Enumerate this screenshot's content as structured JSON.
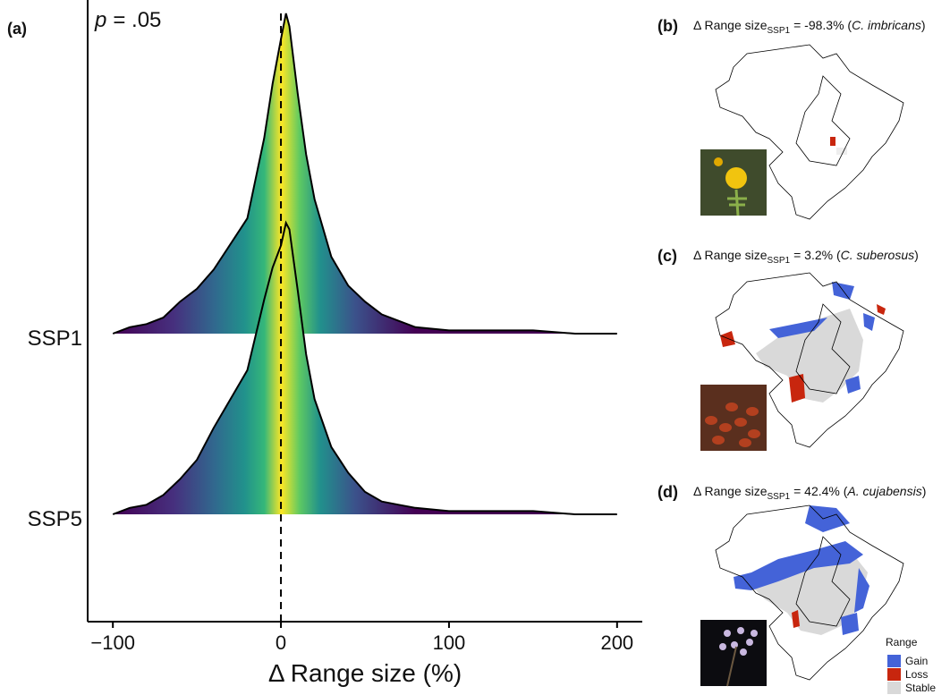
{
  "chart_data": {
    "type": "ridgeline",
    "panel_label": "(a)",
    "annotation": {
      "symbol": "p",
      "text": "= .05"
    },
    "x_label": "Δ Range size (%)",
    "x": [
      -100,
      -90,
      -80,
      -70,
      -60,
      -50,
      -40,
      -30,
      -20,
      -10,
      -5,
      0,
      3,
      5,
      10,
      15,
      20,
      30,
      40,
      50,
      60,
      70,
      80,
      100,
      125,
      150,
      175,
      200
    ],
    "series": [
      {
        "name": "SSP1",
        "values": [
          0,
          0.02,
          0.03,
          0.05,
          0.1,
          0.14,
          0.2,
          0.28,
          0.36,
          0.61,
          0.78,
          0.92,
          1.0,
          0.96,
          0.75,
          0.56,
          0.42,
          0.24,
          0.15,
          0.1,
          0.06,
          0.04,
          0.02,
          0.01,
          0.01,
          0.01,
          0,
          0
        ]
      },
      {
        "name": "SSP5",
        "values": [
          0,
          0.02,
          0.03,
          0.06,
          0.11,
          0.17,
          0.27,
          0.36,
          0.45,
          0.67,
          0.77,
          0.84,
          0.91,
          0.89,
          0.7,
          0.5,
          0.36,
          0.21,
          0.13,
          0.07,
          0.04,
          0.03,
          0.02,
          0.01,
          0.01,
          0.01,
          0,
          0
        ]
      }
    ],
    "xlim": [
      -115,
      215
    ],
    "xticks": [
      {
        "value": -100,
        "label": "−100"
      },
      0,
      100,
      200
    ],
    "vline": 0
  },
  "maps": [
    {
      "label": "(b)",
      "prefix": "Δ Range size",
      "subscript": "SSP1",
      "parts": [
        "= -98.3% (",
        "C. imbricans",
        ")"
      ]
    },
    {
      "label": "(c)",
      "prefix": "Δ Range size",
      "subscript": "SSP1",
      "parts": [
        "= 3.2% (",
        "C. suberosus",
        ")"
      ]
    },
    {
      "label": "(d)",
      "prefix": "Δ Range size",
      "subscript": "SSP1",
      "parts": [
        "= 42.4% (",
        "A. cujabensis",
        ")"
      ]
    }
  ],
  "legend": {
    "title": "Range",
    "items": [
      {
        "name": "Gain",
        "color": "#4463d8"
      },
      {
        "name": "Loss",
        "color": "#c8260e"
      },
      {
        "name": "Stable",
        "color": "#d9d9d9"
      }
    ]
  }
}
